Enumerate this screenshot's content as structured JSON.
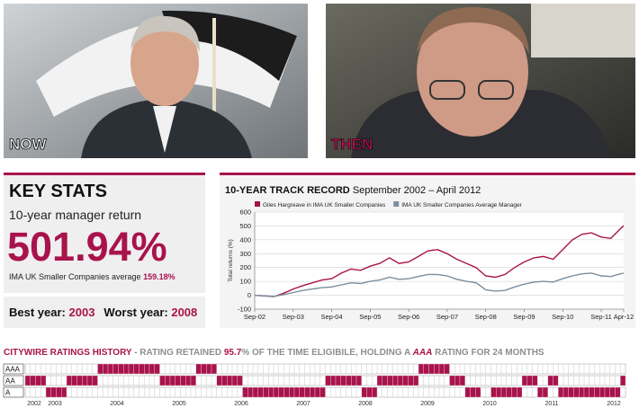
{
  "photos": [
    {
      "label": "NOW"
    },
    {
      "label": "THEN"
    }
  ],
  "key_stats": {
    "title": "KEY STATS",
    "subtitle": "10-year manager return",
    "return": "501.94%",
    "average_label": "IMA UK Smaller Companies average",
    "average": "159.18%",
    "best_label": "Best year:",
    "best": "2003",
    "worst_label": "Worst year:",
    "worst": "2008"
  },
  "chart_data": {
    "type": "line",
    "title": "10-YEAR TRACK RECORD",
    "subtitle": "September 2002 – April 2012",
    "ylabel": "Total returns (%)",
    "x": [
      "2002-09",
      "2002-12",
      "2003-03",
      "2003-06",
      "2003-09",
      "2003-12",
      "2004-03",
      "2004-06",
      "2004-09",
      "2004-12",
      "2005-03",
      "2005-06",
      "2005-09",
      "2005-12",
      "2006-03",
      "2006-06",
      "2006-09",
      "2006-12",
      "2007-03",
      "2007-06",
      "2007-09",
      "2007-12",
      "2008-03",
      "2008-06",
      "2008-09",
      "2008-12",
      "2009-03",
      "2009-06",
      "2009-09",
      "2009-12",
      "2010-03",
      "2010-06",
      "2010-09",
      "2010-12",
      "2011-03",
      "2011-06",
      "2011-09",
      "2011-12",
      "2012-03",
      "2012-04"
    ],
    "series": [
      {
        "name": "Giles Hargreave in IMA UK Smaller Companies",
        "color": "#a8134c",
        "values": [
          0,
          -5,
          -10,
          15,
          45,
          70,
          90,
          110,
          120,
          160,
          190,
          180,
          210,
          230,
          270,
          230,
          240,
          280,
          320,
          330,
          300,
          260,
          230,
          200,
          140,
          130,
          150,
          200,
          240,
          270,
          280,
          260,
          330,
          400,
          440,
          450,
          420,
          410,
          480,
          502
        ]
      },
      {
        "name": "IMA UK Smaller Companies Average Manager",
        "color": "#7b8e9e",
        "values": [
          0,
          -5,
          -8,
          5,
          20,
          35,
          45,
          55,
          60,
          75,
          90,
          85,
          100,
          110,
          130,
          115,
          120,
          135,
          150,
          150,
          140,
          115,
          100,
          90,
          40,
          30,
          35,
          60,
          80,
          95,
          100,
          95,
          120,
          140,
          155,
          160,
          140,
          135,
          155,
          159
        ]
      }
    ],
    "xlim": [
      "2002-09",
      "2012-04"
    ],
    "xticks": [
      {
        "value": "2002-09",
        "label": "Sep-02"
      },
      {
        "value": "2003-09",
        "label": "Sep-03"
      },
      {
        "value": "2004-09",
        "label": "Sep-04"
      },
      {
        "value": "2005-09",
        "label": "Sep-05"
      },
      {
        "value": "2006-09",
        "label": "Sep-06"
      },
      {
        "value": "2007-09",
        "label": "Sep-07"
      },
      {
        "value": "2008-09",
        "label": "Sep-08"
      },
      {
        "value": "2009-09",
        "label": "Sep-09"
      },
      {
        "value": "2010-09",
        "label": "Sep-10"
      },
      {
        "value": "2011-09",
        "label": "Sep-11"
      },
      {
        "value": "2012-04",
        "label": "Apr-12"
      }
    ],
    "ylim": [
      -100,
      600
    ],
    "yticks": [
      -100,
      0,
      100,
      200,
      300,
      400,
      500,
      600
    ],
    "grid": true,
    "legend": "top"
  },
  "ratings": {
    "title_parts": [
      "CITYWIRE RATINGS HISTORY",
      " - RATING RETAINED ",
      "95.7",
      "% OF THE TIME ELIGIBILE, HOLDING A ",
      "AAA",
      " RATING FOR 24 MONTHS"
    ],
    "levels": [
      "AAA",
      "AA",
      "A"
    ],
    "months": [
      2,
      2,
      2,
      2,
      1,
      1,
      1,
      1,
      2,
      2,
      2,
      2,
      2,
      2,
      3,
      3,
      3,
      3,
      3,
      3,
      3,
      3,
      3,
      3,
      3,
      3,
      2,
      2,
      2,
      2,
      2,
      2,
      2,
      3,
      3,
      3,
      3,
      2,
      2,
      2,
      2,
      2,
      1,
      1,
      1,
      1,
      1,
      1,
      1,
      1,
      1,
      1,
      1,
      1,
      1,
      1,
      1,
      1,
      2,
      2,
      2,
      2,
      2,
      2,
      2,
      1,
      1,
      1,
      2,
      2,
      2,
      2,
      2,
      2,
      2,
      2,
      3,
      3,
      3,
      3,
      3,
      3,
      2,
      2,
      2,
      1,
      1,
      1,
      0,
      0,
      1,
      1,
      1,
      1,
      1,
      1,
      2,
      2,
      2,
      1,
      1,
      2,
      2,
      1,
      1,
      1,
      1,
      1,
      1,
      1,
      1,
      1,
      1,
      1,
      1,
      2
    ],
    "years": [
      2002,
      2003,
      2004,
      2005,
      2006,
      2007,
      2008,
      2009,
      2010,
      2011,
      2012
    ]
  }
}
